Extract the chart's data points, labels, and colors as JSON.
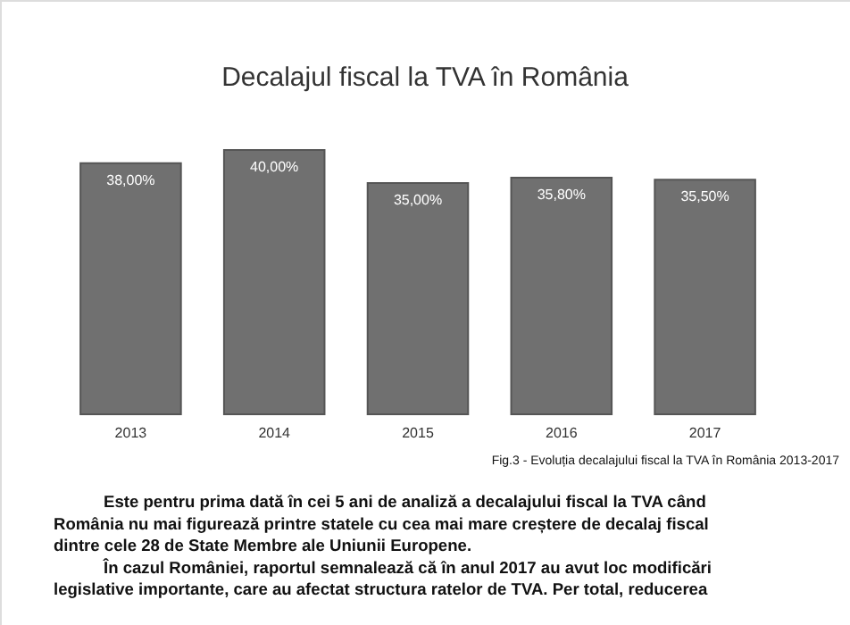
{
  "chart_data": {
    "type": "bar",
    "title": "Decalajul fiscal la TVA în România",
    "categories": [
      "2013",
      "2014",
      "2015",
      "2016",
      "2017"
    ],
    "values": [
      38.0,
      40.0,
      35.0,
      35.8,
      35.5
    ],
    "value_labels": [
      "38,00%",
      "40,00%",
      "35,00%",
      "35,80%",
      "35,50%"
    ],
    "color": "#707070",
    "tick_labels": "x",
    "annotations": [
      "Fig.3 - Evoluția decalajului fiscal la TVA în România 2013-2017",
      "Este pentru prima dată în cei 5 ani de analiză a decalajului fiscal la TVA când",
      "România nu mai figurează printre statele cu cea mai mare creștere de decalaj fiscal",
      "dintre cele 28 de State Membre ale Uniunii Europene.",
      "În cazul României, raportul semnalează că în anul 2017 au avut loc modificări",
      "legislative importante, care au afectat structura ratelor de TVA. Per total, reducerea"
    ]
  }
}
